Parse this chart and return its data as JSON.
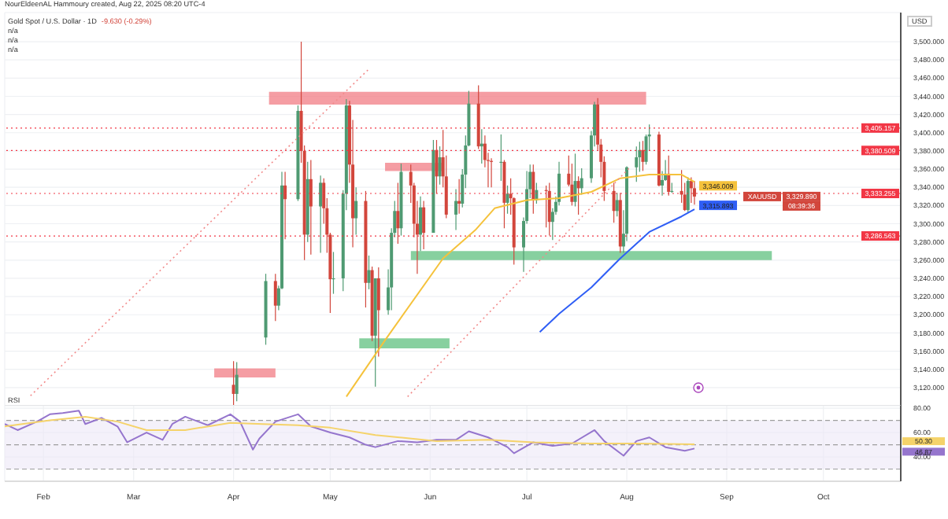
{
  "chart_data": [
    {
      "type": "candlestick",
      "title": "Gold Spot / U.S. Dollar · 1D",
      "ylabel": "USD",
      "annotations": [
        "NourEldeenAL Hammoury created, Aug 22, 2025 08:20 UTC-4",
        "-9.630 (-0.29%)",
        "n/a",
        "n/a",
        "n/a",
        "XAUUSD",
        "3,329.890",
        "08:39:36"
      ],
      "x": [
        "2025-04-01",
        "2025-04-02",
        "2025-04-11",
        "2025-04-14",
        "2025-04-15",
        "2025-04-16",
        "2025-04-17",
        "2025-04-21",
        "2025-04-22",
        "2025-04-23",
        "2025-04-24",
        "2025-04-25",
        "2025-04-28",
        "2025-04-29",
        "2025-04-30",
        "2025-05-01",
        "2025-05-02",
        "2025-05-05",
        "2025-05-06",
        "2025-05-07",
        "2025-05-08",
        "2025-05-09",
        "2025-05-12",
        "2025-05-13",
        "2025-05-14",
        "2025-05-15",
        "2025-05-16",
        "2025-05-19",
        "2025-05-20",
        "2025-05-21",
        "2025-05-22",
        "2025-05-23",
        "2025-05-26",
        "2025-05-27",
        "2025-05-28",
        "2025-05-29",
        "2025-05-30",
        "2025-06-02",
        "2025-06-03",
        "2025-06-04",
        "2025-06-05",
        "2025-06-06",
        "2025-06-09",
        "2025-06-10",
        "2025-06-11",
        "2025-06-12",
        "2025-06-13",
        "2025-06-16",
        "2025-06-17",
        "2025-06-18",
        "2025-06-19",
        "2025-06-20",
        "2025-06-23",
        "2025-06-24",
        "2025-06-25",
        "2025-06-26",
        "2025-06-27",
        "2025-06-30",
        "2025-07-01",
        "2025-07-02",
        "2025-07-03",
        "2025-07-04",
        "2025-07-07",
        "2025-07-08",
        "2025-07-09",
        "2025-07-10",
        "2025-07-11",
        "2025-07-14",
        "2025-07-15",
        "2025-07-16",
        "2025-07-17",
        "2025-07-18",
        "2025-07-21",
        "2025-07-22",
        "2025-07-23",
        "2025-07-24",
        "2025-07-25",
        "2025-07-28",
        "2025-07-29",
        "2025-07-30",
        "2025-07-31",
        "2025-08-01",
        "2025-08-04",
        "2025-08-05",
        "2025-08-06",
        "2025-08-07",
        "2025-08-08",
        "2025-08-11",
        "2025-08-12",
        "2025-08-13",
        "2025-08-14",
        "2025-08-15",
        "2025-08-18",
        "2025-08-19",
        "2025-08-20",
        "2025-08-21",
        "2025-08-22"
      ],
      "ohlc": [
        [
          3123,
          3149,
          3100,
          3113
        ],
        [
          3113,
          3148,
          3105,
          3134
        ],
        [
          3175,
          3245,
          3167,
          3237
        ],
        [
          3237,
          3245,
          3193,
          3210
        ],
        [
          3210,
          3232,
          3205,
          3229
        ],
        [
          3229,
          3357,
          3228,
          3342
        ],
        [
          3342,
          3357,
          3283,
          3327
        ],
        [
          3327,
          3430,
          3325,
          3424
        ],
        [
          3424,
          3500,
          3367,
          3380
        ],
        [
          3380,
          3386,
          3260,
          3288
        ],
        [
          3288,
          3368,
          3280,
          3349
        ],
        [
          3349,
          3370,
          3266,
          3319
        ],
        [
          3319,
          3353,
          3268,
          3345
        ],
        [
          3345,
          3350,
          3300,
          3317
        ],
        [
          3317,
          3328,
          3268,
          3288
        ],
        [
          3288,
          3290,
          3202,
          3239
        ],
        [
          3239,
          3269,
          3223,
          3240
        ],
        [
          3240,
          3337,
          3226,
          3333
        ],
        [
          3333,
          3437,
          3315,
          3430
        ],
        [
          3430,
          3435,
          3345,
          3365
        ],
        [
          3365,
          3414,
          3274,
          3306
        ],
        [
          3306,
          3340,
          3288,
          3325
        ],
        [
          3325,
          3336,
          3208,
          3235
        ],
        [
          3235,
          3265,
          3228,
          3249
        ],
        [
          3249,
          3253,
          3171,
          3177
        ],
        [
          3177,
          3240,
          3121,
          3240
        ],
        [
          3240,
          3252,
          3154,
          3205
        ],
        [
          3205,
          3250,
          3200,
          3230
        ],
        [
          3230,
          3295,
          3205,
          3290
        ],
        [
          3290,
          3325,
          3285,
          3314
        ],
        [
          3314,
          3345,
          3278,
          3295
        ],
        [
          3295,
          3366,
          3287,
          3357
        ],
        [
          3357,
          3365,
          3323,
          3342
        ],
        [
          3342,
          3345,
          3285,
          3300
        ],
        [
          3300,
          3325,
          3245,
          3288
        ],
        [
          3288,
          3330,
          3270,
          3318
        ],
        [
          3318,
          3325,
          3272,
          3290
        ],
        [
          3290,
          3392,
          3290,
          3381
        ],
        [
          3381,
          3392,
          3333,
          3352
        ],
        [
          3352,
          3385,
          3343,
          3373
        ],
        [
          3373,
          3403,
          3340,
          3352
        ],
        [
          3352,
          3375,
          3306,
          3310
        ],
        [
          3310,
          3338,
          3293,
          3325
        ],
        [
          3325,
          3349,
          3311,
          3322
        ],
        [
          3322,
          3360,
          3318,
          3354
        ],
        [
          3354,
          3397,
          3339,
          3386
        ],
        [
          3386,
          3446,
          3385,
          3432
        ],
        [
          3432,
          3452,
          3382,
          3385
        ],
        [
          3385,
          3404,
          3366,
          3388
        ],
        [
          3388,
          3397,
          3362,
          3370
        ],
        [
          3370,
          3378,
          3340,
          3369
        ],
        [
          3369,
          3372,
          3340,
          3368
        ],
        [
          3368,
          3398,
          3347,
          3368
        ],
        [
          3368,
          3370,
          3295,
          3323
        ],
        [
          3323,
          3342,
          3311,
          3333
        ],
        [
          3333,
          3350,
          3310,
          3328
        ],
        [
          3328,
          3329,
          3255,
          3274
        ],
        [
          3274,
          3307,
          3247,
          3303
        ],
        [
          3303,
          3358,
          3300,
          3338
        ],
        [
          3338,
          3365,
          3328,
          3357
        ],
        [
          3357,
          3365,
          3311,
          3326
        ],
        [
          3326,
          3345,
          3322,
          3337
        ],
        [
          3337,
          3342,
          3296,
          3336
        ],
        [
          3336,
          3345,
          3287,
          3302
        ],
        [
          3302,
          3317,
          3282,
          3313
        ],
        [
          3313,
          3330,
          3310,
          3324
        ],
        [
          3324,
          3368,
          3320,
          3355
        ],
        [
          3355,
          3375,
          3341,
          3343
        ],
        [
          3343,
          3366,
          3320,
          3324
        ],
        [
          3324,
          3377,
          3319,
          3347
        ],
        [
          3347,
          3352,
          3310,
          3339
        ],
        [
          3339,
          3361,
          3332,
          3350
        ],
        [
          3350,
          3402,
          3345,
          3397
        ],
        [
          3397,
          3434,
          3385,
          3431
        ],
        [
          3431,
          3438,
          3381,
          3387
        ],
        [
          3387,
          3393,
          3351,
          3368
        ],
        [
          3368,
          3374,
          3325,
          3336
        ],
        [
          3336,
          3345,
          3301,
          3314
        ],
        [
          3314,
          3334,
          3308,
          3326
        ],
        [
          3326,
          3334,
          3268,
          3275
        ],
        [
          3275,
          3315,
          3268,
          3289
        ],
        [
          3289,
          3363,
          3281,
          3362
        ],
        [
          3362,
          3385,
          3346,
          3373
        ],
        [
          3373,
          3390,
          3357,
          3381
        ],
        [
          3381,
          3391,
          3358,
          3368
        ],
        [
          3368,
          3398,
          3365,
          3396
        ],
        [
          3396,
          3409,
          3380,
          3398
        ],
        [
          3398,
          3401,
          3341,
          3342
        ],
        [
          3342,
          3358,
          3331,
          3348
        ],
        [
          3348,
          3370,
          3347,
          3355
        ],
        [
          3355,
          3375,
          3331,
          3335
        ],
        [
          3335,
          3345,
          3334,
          3336
        ],
        [
          3336,
          3359,
          3323,
          3332
        ],
        [
          3332,
          3345,
          3314,
          3315
        ],
        [
          3315,
          3351,
          3312,
          3347
        ],
        [
          3347,
          3351,
          3323,
          3339
        ],
        [
          3339,
          3347,
          3321,
          3329.89
        ]
      ],
      "colors": [
        "#d2463c",
        "#4f9a72",
        "#4f9a72",
        "#d2463c",
        "#4f9a72",
        "#4f9a72",
        "#d2463c",
        "#4f9a72",
        "#d2463c",
        "#d2463c",
        "#4f9a72",
        "#d2463c",
        "#4f9a72",
        "#d2463c",
        "#d2463c",
        "#d2463c",
        "#4f9a72",
        "#4f9a72",
        "#4f9a72",
        "#d2463c",
        "#d2463c",
        "#4f9a72",
        "#d2463c",
        "#4f9a72",
        "#d2463c",
        "#4f9a72",
        "#d2463c",
        "#4f9a72",
        "#4f9a72",
        "#4f9a72",
        "#d2463c",
        "#4f9a72",
        "#d2463c",
        "#d2463c",
        "#d2463c",
        "#4f9a72",
        "#d2463c",
        "#4f9a72",
        "#d2463c",
        "#4f9a72",
        "#d2463c",
        "#d2463c",
        "#4f9a72",
        "#d2463c",
        "#4f9a72",
        "#4f9a72",
        "#4f9a72",
        "#d2463c",
        "#4f9a72",
        "#d2463c",
        "#d2463c",
        "#d2463c",
        "#4f9a72",
        "#d2463c",
        "#4f9a72",
        "#d2463c",
        "#d2463c",
        "#4f9a72",
        "#4f9a72",
        "#4f9a72",
        "#d2463c",
        "#4f9a72",
        "#d2463c",
        "#d2463c",
        "#4f9a72",
        "#4f9a72",
        "#4f9a72",
        "#d2463c",
        "#d2463c",
        "#4f9a72",
        "#d2463c",
        "#4f9a72",
        "#4f9a72",
        "#4f9a72",
        "#d2463c",
        "#d2463c",
        "#d2463c",
        "#d2463c",
        "#4f9a72",
        "#d2463c",
        "#4f9a72",
        "#4f9a72",
        "#4f9a72",
        "#4f9a72",
        "#d2463c",
        "#4f9a72",
        "#4f9a72",
        "#d2463c",
        "#4f9a72",
        "#4f9a72",
        "#d2463c",
        "#4f9a72",
        "#d2463c",
        "#d2463c",
        "#4f9a72",
        "#d2463c",
        "#d2463c"
      ],
      "series": [
        {
          "type": "line",
          "color": "#f5c23c",
          "x": [
            "2025-05-06",
            "2025-05-18",
            "2025-06-05",
            "2025-06-15",
            "2025-06-21",
            "2025-07-01",
            "2025-07-11",
            "2025-07-21",
            "2025-07-30",
            "2025-08-08",
            "2025-08-18",
            "2025-08-22"
          ],
          "values": [
            3110,
            3172,
            3262,
            3293,
            3317,
            3326,
            3328,
            3335,
            3350,
            3354,
            3354,
            3346.009
          ],
          "value_labels": [
            null,
            null,
            null,
            null,
            null,
            null,
            null,
            null,
            null,
            null,
            null,
            "3,346.009"
          ]
        },
        {
          "type": "line",
          "color": "#2f5ef5",
          "x": [
            "2025-07-05",
            "2025-07-11",
            "2025-07-21",
            "2025-07-30",
            "2025-08-08",
            "2025-08-18",
            "2025-08-22"
          ],
          "values": [
            3181,
            3201,
            3230,
            3262,
            3291,
            3308,
            3315.893
          ],
          "value_labels": [
            null,
            null,
            null,
            null,
            null,
            null,
            "3,315.893"
          ]
        },
        {
          "type": "line",
          "color": "#f28b8b",
          "line_style": "dotted",
          "x": [
            "2025-01-28",
            "2025-05-13"
          ],
          "values": [
            3111,
            3470
          ]
        },
        {
          "type": "line",
          "color": "#f28b8b",
          "line_style": "dotted",
          "x": [
            "2025-05-25",
            "2025-08-02"
          ],
          "values": [
            3110,
            3362
          ]
        },
        {
          "type": "area",
          "color": "#f27c84",
          "x": [
            "2025-04-12",
            "2025-08-07"
          ],
          "values": [
            null,
            null
          ],
          "lower": [
            3431,
            3431
          ],
          "upper": [
            3445,
            3445
          ]
        },
        {
          "type": "area",
          "color": "#f27c84",
          "x": [
            "2025-03-26",
            "2025-04-14"
          ],
          "values": [
            null,
            null
          ],
          "lower": [
            3131,
            3131
          ],
          "upper": [
            3141,
            3141
          ]
        },
        {
          "type": "area",
          "color": "#f27c84",
          "x": [
            "2025-05-18",
            "2025-06-05"
          ],
          "values": [
            null,
            null
          ],
          "lower": [
            3358,
            3358
          ],
          "upper": [
            3367,
            3367
          ]
        },
        {
          "type": "area",
          "color": "#5fc07f",
          "x": [
            "2025-05-26",
            "2025-09-15"
          ],
          "values": [
            null,
            null
          ],
          "lower": [
            3260,
            3260
          ],
          "upper": [
            3270,
            3270
          ]
        },
        {
          "type": "area",
          "color": "#5fc07f",
          "x": [
            "2025-05-10",
            "2025-06-07"
          ],
          "values": [
            null,
            null
          ],
          "lower": [
            3163,
            3163
          ],
          "upper": [
            3174,
            3174
          ]
        }
      ],
      "ref_lines": [
        {
          "axis": "y",
          "value": 3405.157,
          "label": "3,405.157",
          "color": "#f23645",
          "line_style": "dotted"
        },
        {
          "axis": "y",
          "value": 3380.509,
          "label": "3,380.509",
          "color": "#f23645",
          "line_style": "dotted"
        },
        {
          "axis": "y",
          "value": 3333.255,
          "label": "3,333.255",
          "color": "#f23645",
          "line_style": "dotted"
        },
        {
          "axis": "y",
          "value": 3286.563,
          "label": "3,286.563",
          "color": "#f23645",
          "line_style": "dotted"
        }
      ],
      "xlim": [
        "2025-01-20",
        "2025-10-25"
      ],
      "xticks": [
        {
          "value": "2025-02-01",
          "label": null
        },
        {
          "value": "2025-03-01",
          "label": null
        },
        {
          "value": "2025-04-01",
          "label": null
        },
        {
          "value": "2025-05-01",
          "label": null
        },
        {
          "value": "2025-06-01",
          "label": null
        },
        {
          "value": "2025-07-01",
          "label": null
        },
        {
          "value": "2025-08-01",
          "label": null
        },
        {
          "value": "2025-09-01",
          "label": null
        },
        {
          "value": "2025-10-01",
          "label": null
        }
      ],
      "ylim": [
        3100,
        3532
      ],
      "yticks": [
        {
          "value": 3120,
          "label": "3,120.000"
        },
        {
          "value": 3140,
          "label": "3,140.000"
        },
        {
          "value": 3160,
          "label": "3,160.000"
        },
        {
          "value": 3180,
          "label": "3,180.000"
        },
        {
          "value": 3200,
          "label": "3,200.000"
        },
        {
          "value": 3220,
          "label": "3,220.000"
        },
        {
          "value": 3240,
          "label": "3,240.000"
        },
        {
          "value": 3260,
          "label": "3,260.000"
        },
        {
          "value": 3280,
          "label": "3,280.000"
        },
        {
          "value": 3300,
          "label": "3,300.000"
        },
        {
          "value": 3320,
          "label": "3,320.000"
        },
        {
          "value": 3340,
          "label": "3,340.000"
        },
        {
          "value": 3360,
          "label": "3,360.000"
        },
        {
          "value": 3380,
          "label": "3,380.000"
        },
        {
          "value": 3400,
          "label": "3,400.000"
        },
        {
          "value": 3420,
          "label": "3,420.000"
        },
        {
          "value": 3440,
          "label": "3,440.000"
        },
        {
          "value": 3460,
          "label": "3,460.000"
        },
        {
          "value": 3480,
          "label": "3,480.000"
        },
        {
          "value": 3500,
          "label": "3,500.000"
        }
      ],
      "grid": true,
      "tick_labels": "y"
    },
    {
      "type": "line",
      "title": "RSI",
      "annotations": [
        "46.87",
        "50.30"
      ],
      "series": [
        {
          "color": "#9575cd",
          "x": [
            "2025-01-20",
            "2025-01-24",
            "2025-01-30",
            "2025-02-03",
            "2025-02-07",
            "2025-02-12",
            "2025-02-14",
            "2025-02-19",
            "2025-02-24",
            "2025-02-27",
            "2025-03-05",
            "2025-03-10",
            "2025-03-13",
            "2025-03-17",
            "2025-03-24",
            "2025-03-31",
            "2025-04-03",
            "2025-04-07",
            "2025-04-09",
            "2025-04-14",
            "2025-04-21",
            "2025-04-25",
            "2025-05-01",
            "2025-05-07",
            "2025-05-12",
            "2025-05-15",
            "2025-05-22",
            "2025-05-28",
            "2025-06-03",
            "2025-06-09",
            "2025-06-13",
            "2025-06-19",
            "2025-06-25",
            "2025-06-27",
            "2025-07-03",
            "2025-07-09",
            "2025-07-15",
            "2025-07-22",
            "2025-07-25",
            "2025-07-31",
            "2025-08-04",
            "2025-08-08",
            "2025-08-13",
            "2025-08-19",
            "2025-08-22"
          ],
          "values": [
            67,
            62,
            69,
            75,
            76,
            78,
            67,
            72,
            65,
            52,
            60,
            54,
            67,
            73,
            66,
            75,
            69,
            46,
            55,
            69,
            75,
            65,
            60,
            56,
            50,
            48,
            53,
            52,
            54,
            54,
            61,
            56,
            48,
            43,
            52,
            49,
            51,
            62,
            53,
            41,
            53,
            56,
            48,
            45,
            46.87
          ],
          "line_style": "solid"
        },
        {
          "color": "#f5d36a",
          "x": [
            "2025-01-20",
            "2025-02-03",
            "2025-02-14",
            "2025-02-24",
            "2025-03-05",
            "2025-03-17",
            "2025-03-31",
            "2025-04-10",
            "2025-04-21",
            "2025-05-01",
            "2025-05-15",
            "2025-06-03",
            "2025-06-19",
            "2025-07-03",
            "2025-07-21",
            "2025-08-04",
            "2025-08-22"
          ],
          "values": [
            65,
            70,
            73,
            69,
            62,
            62,
            68,
            67,
            66,
            64,
            58,
            53,
            54,
            52,
            51,
            51,
            50.3
          ],
          "line_style": "solid"
        }
      ],
      "ref_lines": [
        {
          "axis": "y",
          "value": 70,
          "color": "#9e9e9e",
          "line_style": "dashed"
        },
        {
          "axis": "y",
          "value": 50,
          "color": "#9e9e9e",
          "line_style": "dashed"
        },
        {
          "axis": "y",
          "value": 30,
          "color": "#9e9e9e",
          "line_style": "dashed"
        }
      ],
      "bands": [
        {
          "axis": "y",
          "from": 30,
          "to": 70,
          "color": "#ede7f6"
        }
      ],
      "xlim": [
        "2025-01-20",
        "2025-10-25"
      ],
      "xticks": [
        {
          "value": "2025-02-01",
          "label": "Feb"
        },
        {
          "value": "2025-03-01",
          "label": "Mar"
        },
        {
          "value": "2025-04-01",
          "label": "Apr"
        },
        {
          "value": "2025-05-01",
          "label": "May"
        },
        {
          "value": "2025-06-01",
          "label": "Jun"
        },
        {
          "value": "2025-07-01",
          "label": "Jul"
        },
        {
          "value": "2025-08-01",
          "label": "Aug"
        },
        {
          "value": "2025-09-01",
          "label": "Sep"
        },
        {
          "value": "2025-10-01",
          "label": "Oct"
        }
      ],
      "ylim": [
        20,
        82
      ],
      "yticks": [
        {
          "value": 40,
          "label": "40.00"
        },
        {
          "value": 60,
          "label": "60.00"
        },
        {
          "value": 80,
          "label": "80.00"
        }
      ],
      "grid": true
    }
  ]
}
